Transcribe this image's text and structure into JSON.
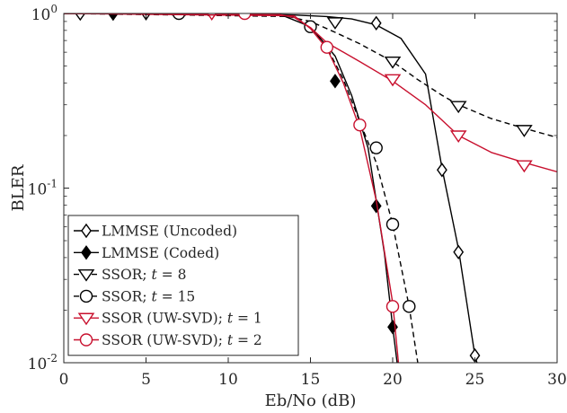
{
  "chart_data": {
    "type": "line",
    "title": "",
    "xlabel": "Eb/No (dB)",
    "ylabel": "BLER",
    "xlim": [
      0,
      30
    ],
    "ylim": [
      0.01,
      1
    ],
    "yscale": "log",
    "grid": false,
    "legend_position": "bottom-left",
    "x_ticks": [
      0,
      5,
      10,
      15,
      20,
      25,
      30
    ],
    "x_tick_labels": [
      "0",
      "5",
      "10",
      "15",
      "20",
      "25",
      "30"
    ],
    "y_tick_labels": [
      {
        "value": 1,
        "base": "10",
        "exp": "0"
      },
      {
        "value": 0.1,
        "base": "10",
        "exp": "-1"
      },
      {
        "value": 0.01,
        "base": "10",
        "exp": "-2"
      }
    ],
    "series": [
      {
        "name": "LMMSE (Uncoded)",
        "label_parts": [
          {
            "text": "LMMSE (Uncoded)",
            "italic": false
          }
        ],
        "color": "#000000",
        "dash": "solid",
        "marker": "diamond-open",
        "line": [
          [
            0,
            1
          ],
          [
            10,
            1
          ],
          [
            14,
            0.98
          ],
          [
            16,
            0.96
          ],
          [
            17.5,
            0.93
          ],
          [
            19,
            0.86
          ],
          [
            20.5,
            0.72
          ],
          [
            22,
            0.45
          ],
          [
            23,
            0.13
          ],
          [
            24,
            0.045
          ],
          [
            25,
            0.011
          ],
          [
            25.8,
            0.006
          ]
        ],
        "markers": [
          [
            1,
            1
          ],
          [
            3,
            1
          ],
          [
            19,
            0.88
          ],
          [
            23,
            0.127
          ],
          [
            24,
            0.043
          ],
          [
            25,
            0.011
          ]
        ]
      },
      {
        "name": "LMMSE (Coded)",
        "label_parts": [
          {
            "text": "LMMSE (Coded)",
            "italic": false
          }
        ],
        "color": "#000000",
        "dash": "solid",
        "marker": "diamond-filled",
        "line": [
          [
            0,
            1
          ],
          [
            13,
            1
          ],
          [
            15,
            0.84
          ],
          [
            16.5,
            0.57
          ],
          [
            17.5,
            0.34
          ],
          [
            18.5,
            0.17
          ],
          [
            19,
            0.085
          ],
          [
            19.5,
            0.042
          ],
          [
            20,
            0.016
          ],
          [
            20.4,
            0.008
          ]
        ],
        "markers": [
          [
            3,
            1
          ],
          [
            16.5,
            0.41
          ],
          [
            19,
            0.079
          ],
          [
            20,
            0.016
          ]
        ]
      },
      {
        "name": "SSOR; t = 8",
        "label_parts": [
          {
            "text": "SSOR; ",
            "italic": false
          },
          {
            "text": "t",
            "italic": true
          },
          {
            "text": " = 8",
            "italic": false
          }
        ],
        "color": "#000000",
        "dash": "dashed",
        "marker": "triangle-down-open",
        "line": [
          [
            0,
            1
          ],
          [
            13,
            0.99
          ],
          [
            15,
            0.9
          ],
          [
            16.5,
            0.78
          ],
          [
            18,
            0.67
          ],
          [
            20,
            0.53
          ],
          [
            21.5,
            0.42
          ],
          [
            23,
            0.34
          ],
          [
            24,
            0.3
          ],
          [
            26,
            0.25
          ],
          [
            28,
            0.22
          ],
          [
            30,
            0.195
          ]
        ],
        "markers": [
          [
            5,
            1
          ],
          [
            16.5,
            0.89
          ],
          [
            20,
            0.53
          ],
          [
            24,
            0.295
          ],
          [
            28,
            0.215
          ]
        ]
      },
      {
        "name": "SSOR; t = 15",
        "label_parts": [
          {
            "text": "SSOR; ",
            "italic": false
          },
          {
            "text": "t",
            "italic": true
          },
          {
            "text": " = 15",
            "italic": false
          }
        ],
        "color": "#000000",
        "dash": "dashed",
        "marker": "circle-open",
        "line": [
          [
            0,
            1
          ],
          [
            14,
            0.96
          ],
          [
            15,
            0.84
          ],
          [
            16,
            0.64
          ],
          [
            17,
            0.42
          ],
          [
            18,
            0.24
          ],
          [
            19,
            0.14
          ],
          [
            20,
            0.062
          ],
          [
            21,
            0.021
          ],
          [
            21.6,
            0.009
          ]
        ],
        "markers": [
          [
            7,
            1
          ],
          [
            15,
            0.84
          ],
          [
            19,
            0.17
          ],
          [
            20,
            0.062
          ],
          [
            21,
            0.021
          ]
        ]
      },
      {
        "name": "SSOR (UW-SVD); t = 1",
        "label_parts": [
          {
            "text": "SSOR (UW-SVD); ",
            "italic": false
          },
          {
            "text": "t",
            "italic": true
          },
          {
            "text": " = 1",
            "italic": false
          }
        ],
        "color": "#c8102e",
        "dash": "solid",
        "marker": "triangle-down-open",
        "line": [
          [
            0,
            1
          ],
          [
            13,
            0.99
          ],
          [
            14,
            0.95
          ],
          [
            15,
            0.83
          ],
          [
            16,
            0.68
          ],
          [
            18,
            0.53
          ],
          [
            20,
            0.41
          ],
          [
            22,
            0.3
          ],
          [
            24,
            0.2
          ],
          [
            26,
            0.16
          ],
          [
            28,
            0.14
          ],
          [
            30,
            0.124
          ]
        ],
        "markers": [
          [
            9,
            1
          ],
          [
            20,
            0.42
          ],
          [
            24,
            0.2
          ],
          [
            28,
            0.135
          ]
        ]
      },
      {
        "name": "SSOR (UW-SVD); t = 2",
        "label_parts": [
          {
            "text": "SSOR (UW-SVD); ",
            "italic": false
          },
          {
            "text": "t",
            "italic": true
          },
          {
            "text": " = 2",
            "italic": false
          }
        ],
        "color": "#c8102e",
        "dash": "solid",
        "marker": "circle-open",
        "line": [
          [
            0,
            1
          ],
          [
            14,
            0.97
          ],
          [
            15,
            0.82
          ],
          [
            16,
            0.63
          ],
          [
            17,
            0.4
          ],
          [
            18,
            0.22
          ],
          [
            19,
            0.085
          ],
          [
            20,
            0.022
          ],
          [
            20.4,
            0.009
          ]
        ],
        "markers": [
          [
            11,
            1
          ],
          [
            16,
            0.64
          ],
          [
            18,
            0.23
          ],
          [
            20,
            0.021
          ]
        ]
      }
    ]
  }
}
